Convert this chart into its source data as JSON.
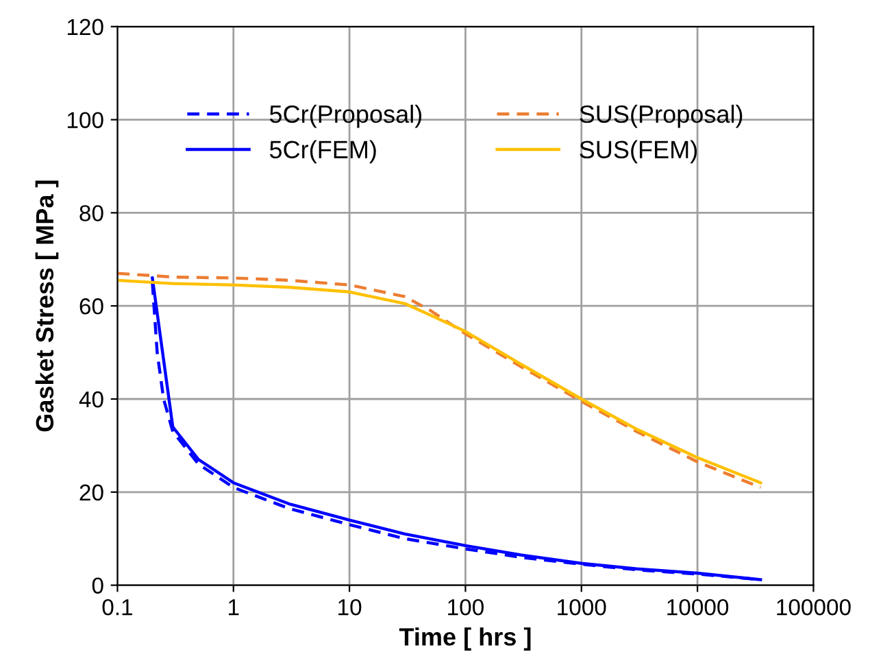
{
  "chart_data": {
    "type": "line",
    "xlabel": "Time [ hrs ]",
    "ylabel": "Gasket Stress [ MPa ]",
    "log": "x",
    "xlim": [
      0.1,
      100000
    ],
    "xticks": [
      0.1,
      1,
      10,
      100,
      1000,
      10000,
      100000
    ],
    "ylim": [
      0,
      120
    ],
    "yticks": [
      0,
      20,
      40,
      60,
      80,
      100,
      120
    ],
    "grid": true,
    "legend": "top",
    "marker": "none",
    "series": [
      {
        "name": "5Cr(Proposal)",
        "color": "#0000ff",
        "line_style": "dashed",
        "x": [
          0.2,
          0.22,
          0.25,
          0.3,
          0.5,
          1,
          3,
          10,
          30,
          100,
          300,
          1000,
          3000,
          10000,
          35000
        ],
        "values": [
          65,
          50,
          40,
          33,
          26,
          21,
          16.5,
          13,
          10,
          7.8,
          6,
          4.5,
          3.3,
          2.4,
          1.2
        ]
      },
      {
        "name": "5Cr(FEM)",
        "color": "#0000ff",
        "line_style": "solid",
        "x": [
          0.2,
          0.3,
          0.5,
          1,
          3,
          10,
          30,
          100,
          300,
          1000,
          3000,
          10000,
          35000
        ],
        "values": [
          66,
          34,
          27,
          22,
          17.5,
          14,
          11,
          8.5,
          6.5,
          4.7,
          3.5,
          2.6,
          1.2
        ]
      },
      {
        "name": "SUS(Proposal)",
        "color": "#ed7d31",
        "line_style": "dashed",
        "x": [
          0.1,
          0.3,
          1,
          3,
          10,
          30,
          50,
          100,
          300,
          1000,
          3000,
          10000,
          35000
        ],
        "values": [
          67,
          66.2,
          66,
          65.5,
          64.5,
          62,
          59,
          54,
          47,
          39.5,
          33,
          26.5,
          21
        ]
      },
      {
        "name": "SUS(FEM)",
        "color": "#ffc000",
        "line_style": "solid",
        "x": [
          0.1,
          0.3,
          1,
          3,
          10,
          30,
          50,
          100,
          300,
          1000,
          3000,
          10000,
          35000
        ],
        "values": [
          65.5,
          64.8,
          64.5,
          64,
          63,
          60.5,
          58,
          54.5,
          47.5,
          40,
          33.5,
          27.4,
          22
        ]
      }
    ]
  }
}
